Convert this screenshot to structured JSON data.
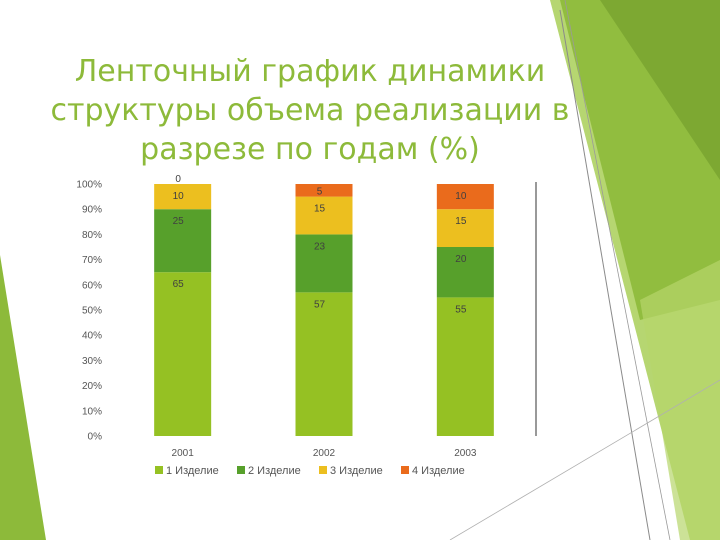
{
  "slide": {
    "title": "Ленточный график динамики структуры объема реализации в разрезе по годам (%)",
    "accent_colors": [
      "#8dba3a",
      "#a9cf58",
      "#6f9a2a"
    ]
  },
  "chart_data": {
    "type": "bar",
    "stacked": true,
    "categories": [
      "2001",
      "2002",
      "2003"
    ],
    "series": [
      {
        "name": "1 Изделие",
        "values": [
          65,
          57,
          55
        ],
        "color": "#95c123"
      },
      {
        "name": "2 Изделие",
        "values": [
          25,
          23,
          20
        ],
        "color": "#57a02b"
      },
      {
        "name": "3 Изделие",
        "values": [
          10,
          15,
          15
        ],
        "color": "#ecbf1f"
      },
      {
        "name": "4 Изделие",
        "values": [
          0,
          5,
          10
        ],
        "color": "#ea6b1c"
      }
    ],
    "yticks": [
      "0%",
      "10%",
      "20%",
      "30%",
      "40%",
      "50%",
      "60%",
      "70%",
      "80%",
      "90%",
      "100%"
    ],
    "ylim": [
      0,
      100
    ],
    "legend_position": "bottom",
    "grid": false
  }
}
